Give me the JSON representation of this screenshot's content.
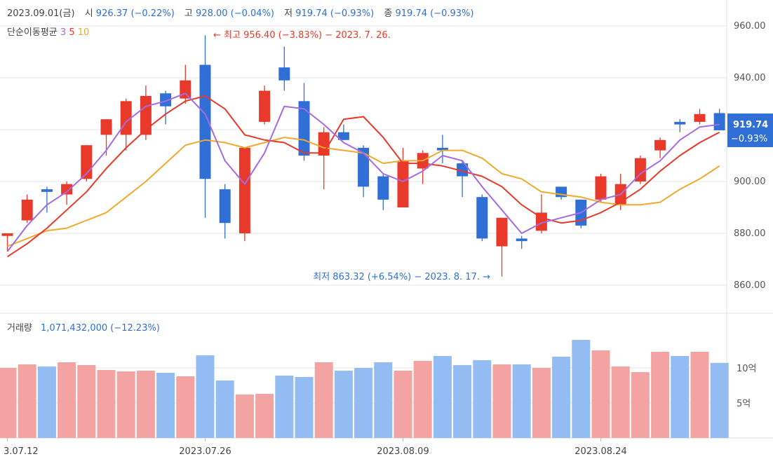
{
  "header": {
    "date": "2023.09.01(금)",
    "open_label": "시",
    "open": "926.37",
    "open_change": "(−0.22%)",
    "high_label": "고",
    "high": "928.00",
    "high_change": "(−0.04%)",
    "low_label": "저",
    "low": "919.74",
    "low_change": "(−0.93%)",
    "close_label": "종",
    "close": "919.74",
    "close_change": "(−0.93%)"
  },
  "ma_legend": {
    "label": "단순이동평균",
    "p3": "3",
    "p5": "5",
    "p10": "10"
  },
  "colors": {
    "up": "#e8392a",
    "down": "#2f6fd6",
    "ma3": "#a56be0",
    "ma5": "#e8392a",
    "ma10": "#efa92e",
    "vol_up": "#f4a3a3",
    "vol_down": "#93bcf3",
    "grid": "#e6e6e6"
  },
  "annotations": {
    "high": "← 최고 956.40 (−3.83%) − 2023. 7. 26.",
    "low": "최저 863.32 (+6.54%) − 2023. 8. 17. →"
  },
  "price_badge": {
    "price": "919.74",
    "change": "−0.93%"
  },
  "volume": {
    "label": "거래량",
    "value": "1,071,432,000 (−12.23%)"
  },
  "chart_data": [
    {
      "type": "candlestick",
      "title": "",
      "ylim": [
        850,
        965
      ],
      "yticks": [
        "960.00",
        "940.00",
        "920.00",
        "900.00",
        "880.00",
        "860.00"
      ],
      "ytick_values": [
        960,
        940,
        920,
        900,
        880,
        860
      ],
      "xticks": [
        {
          "label": "3.07.12",
          "index": 0
        },
        {
          "label": "2023.07.26",
          "index": 10
        },
        {
          "label": "2023.08.09",
          "index": 20
        },
        {
          "label": "2023.08.24",
          "index": 30
        }
      ],
      "candles": [
        {
          "o": 879,
          "h": 880,
          "l": 873,
          "c": 880
        },
        {
          "o": 885,
          "h": 895,
          "l": 884,
          "c": 893
        },
        {
          "o": 897,
          "h": 898,
          "l": 888,
          "c": 896
        },
        {
          "o": 895,
          "h": 900,
          "l": 891,
          "c": 899
        },
        {
          "o": 901,
          "h": 914,
          "l": 900,
          "c": 914
        },
        {
          "o": 918,
          "h": 924,
          "l": 910,
          "c": 924
        },
        {
          "o": 918,
          "h": 932,
          "l": 912,
          "c": 931
        },
        {
          "o": 918,
          "h": 937,
          "l": 916,
          "c": 933
        },
        {
          "o": 934,
          "h": 935,
          "l": 922,
          "c": 929
        },
        {
          "o": 932,
          "h": 945,
          "l": 930,
          "c": 939
        },
        {
          "o": 945,
          "h": 956.4,
          "l": 886,
          "c": 901
        },
        {
          "o": 897,
          "h": 899,
          "l": 878,
          "c": 884
        },
        {
          "o": 880,
          "h": 913,
          "l": 877,
          "c": 913
        },
        {
          "o": 923,
          "h": 937,
          "l": 922,
          "c": 935
        },
        {
          "o": 944,
          "h": 952,
          "l": 935,
          "c": 939
        },
        {
          "o": 931,
          "h": 938,
          "l": 908,
          "c": 910
        },
        {
          "o": 910,
          "h": 921,
          "l": 897,
          "c": 919
        },
        {
          "o": 919,
          "h": 922,
          "l": 916,
          "c": 916
        },
        {
          "o": 913,
          "h": 914,
          "l": 894,
          "c": 898
        },
        {
          "o": 902,
          "h": 903,
          "l": 889,
          "c": 893
        },
        {
          "o": 890,
          "h": 913,
          "l": 890,
          "c": 908
        },
        {
          "o": 905,
          "h": 912,
          "l": 899,
          "c": 911
        },
        {
          "o": 913,
          "h": 918,
          "l": 907,
          "c": 912
        },
        {
          "o": 907,
          "h": 908,
          "l": 894,
          "c": 902
        },
        {
          "o": 894,
          "h": 895,
          "l": 877,
          "c": 878
        },
        {
          "o": 875,
          "h": 886,
          "l": 863.32,
          "c": 886
        },
        {
          "o": 878,
          "h": 879,
          "l": 874,
          "c": 877
        },
        {
          "o": 881,
          "h": 895,
          "l": 880,
          "c": 888
        },
        {
          "o": 898,
          "h": 898,
          "l": 893,
          "c": 894
        },
        {
          "o": 893,
          "h": 893,
          "l": 882,
          "c": 883
        },
        {
          "o": 893,
          "h": 903,
          "l": 892,
          "c": 902
        },
        {
          "o": 891,
          "h": 903,
          "l": 889,
          "c": 899
        },
        {
          "o": 900,
          "h": 910,
          "l": 899,
          "c": 909
        },
        {
          "o": 912,
          "h": 917,
          "l": 909,
          "c": 916
        },
        {
          "o": 923,
          "h": 924,
          "l": 919,
          "c": 922
        },
        {
          "o": 923,
          "h": 928,
          "l": 922,
          "c": 926
        },
        {
          "o": 926.37,
          "h": 928,
          "l": 919.74,
          "c": 919.74
        }
      ],
      "ma3": [
        873,
        883,
        891,
        896,
        903,
        912,
        923,
        929,
        931,
        934,
        926,
        908,
        899,
        911,
        929,
        928,
        922,
        915,
        911,
        903,
        900,
        904,
        910,
        908,
        898,
        889,
        880,
        884,
        886,
        888,
        893,
        895,
        903,
        908,
        916,
        921,
        922
      ],
      "ma5": [
        871,
        876,
        882,
        889,
        896,
        905,
        913,
        920,
        926,
        931,
        933,
        928,
        918,
        916,
        915,
        911,
        911,
        924,
        925,
        917,
        907,
        907,
        906,
        904,
        902,
        898,
        891,
        886,
        884,
        885,
        888,
        892,
        897,
        904,
        910,
        915,
        919
      ],
      "ma10": [
        875,
        878,
        881,
        882,
        885,
        888,
        894,
        900,
        907,
        914,
        916,
        915,
        913,
        915,
        917,
        916,
        913,
        912,
        911,
        907,
        908,
        908,
        912,
        912,
        909,
        903,
        901,
        896,
        895,
        894,
        892,
        891,
        891,
        892,
        897,
        901,
        906
      ]
    },
    {
      "type": "bar",
      "title": "",
      "ylabel": "",
      "yticks": [
        "10억",
        "5억"
      ],
      "ytick_values": [
        1000000000,
        500000000
      ],
      "ylim": [
        0,
        1600000000
      ],
      "values": [
        1000000000,
        1050000000,
        1020000000,
        1080000000,
        1040000000,
        970000000,
        950000000,
        960000000,
        930000000,
        880000000,
        1180000000,
        820000000,
        620000000,
        630000000,
        890000000,
        870000000,
        1080000000,
        960000000,
        1000000000,
        1080000000,
        960000000,
        1100000000,
        1170000000,
        1040000000,
        1110000000,
        1050000000,
        1050000000,
        1000000000,
        1160000000,
        1400000000,
        1250000000,
        1020000000,
        940000000,
        1230000000,
        1170000000,
        1230000000,
        1071432000
      ],
      "up": [
        true,
        true,
        false,
        true,
        true,
        true,
        true,
        true,
        false,
        true,
        false,
        false,
        true,
        true,
        false,
        false,
        true,
        false,
        false,
        false,
        true,
        true,
        false,
        false,
        false,
        true,
        false,
        true,
        false,
        false,
        true,
        true,
        true,
        true,
        false,
        true,
        false
      ]
    }
  ]
}
